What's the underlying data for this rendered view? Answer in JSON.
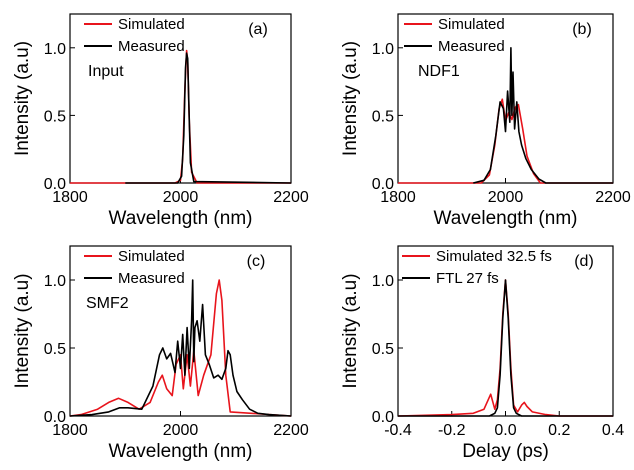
{
  "chart_data": [
    {
      "type": "line",
      "panel_label": "(a)",
      "annotation": "Input",
      "xlabel": "Wavelength (nm)",
      "ylabel": "Intensity (a.u)",
      "xlim": [
        1800,
        2200
      ],
      "ylim": [
        0,
        1.25
      ],
      "xticks": [
        "1800",
        "2000",
        "2200"
      ],
      "yticks": [
        "0.0",
        "0.5",
        "1.0"
      ],
      "legend_position": "top-left",
      "colors": {
        "Simulated": "#e8141c",
        "Measured": "#000000"
      },
      "series": [
        {
          "name": "Simulated",
          "x": [
            1800,
            1990,
            2000,
            2004,
            2008,
            2011,
            2013,
            2016,
            2020,
            2030,
            2200
          ],
          "y": [
            0,
            0,
            0.02,
            0.18,
            0.7,
            0.98,
            0.9,
            0.45,
            0.08,
            0,
            0
          ]
        },
        {
          "name": "Measured",
          "x": [
            1900,
            1995,
            2002,
            2006,
            2009,
            2011,
            2013,
            2015,
            2018,
            2024,
            2200
          ],
          "y": [
            0,
            0,
            0.05,
            0.35,
            0.85,
            0.96,
            0.92,
            0.6,
            0.15,
            0.01,
            0
          ]
        }
      ]
    },
    {
      "type": "line",
      "panel_label": "(b)",
      "annotation": "NDF1",
      "xlabel": "Wavelength (nm)",
      "ylabel": "Intensity (a.u)",
      "xlim": [
        1800,
        2200
      ],
      "ylim": [
        0,
        1.25
      ],
      "xticks": [
        "1800",
        "2000",
        "2200"
      ],
      "yticks": [
        "0.0",
        "0.5",
        "1.0"
      ],
      "legend_position": "top-left",
      "colors": {
        "Simulated": "#e8141c",
        "Measured": "#000000"
      },
      "series": [
        {
          "name": "Simulated",
          "x": [
            1800,
            1955,
            1970,
            1980,
            1988,
            1994,
            2000,
            2006,
            2012,
            2018,
            2024,
            2032,
            2040,
            2052,
            2065,
            2200
          ],
          "y": [
            0,
            0,
            0.06,
            0.28,
            0.55,
            0.62,
            0.46,
            0.52,
            0.47,
            0.56,
            0.58,
            0.4,
            0.2,
            0.07,
            0,
            0
          ]
        },
        {
          "name": "Measured",
          "x": [
            1940,
            1960,
            1972,
            1982,
            1990,
            1996,
            2000,
            2004,
            2008,
            2010,
            2012,
            2014,
            2017,
            2021,
            2025,
            2030,
            2038,
            2048,
            2062,
            2075,
            2200
          ],
          "y": [
            0,
            0.02,
            0.1,
            0.35,
            0.6,
            0.55,
            0.38,
            0.68,
            0.45,
            1.0,
            0.5,
            0.82,
            0.4,
            0.6,
            0.38,
            0.28,
            0.18,
            0.1,
            0.03,
            0,
            0
          ]
        }
      ]
    },
    {
      "type": "line",
      "panel_label": "(c)",
      "annotation": "SMF2",
      "xlabel": "Wavelength (nm)",
      "ylabel": "Intensity (a.u)",
      "xlim": [
        1800,
        2200
      ],
      "ylim": [
        0,
        1.25
      ],
      "xticks": [
        "1800",
        "2000",
        "2200"
      ],
      "yticks": [
        "0.0",
        "0.5",
        "1.0"
      ],
      "legend_position": "top-left",
      "colors": {
        "Simulated": "#e8141c",
        "Measured": "#000000"
      },
      "series": [
        {
          "name": "Simulated",
          "x": [
            1800,
            1820,
            1850,
            1870,
            1888,
            1905,
            1925,
            1945,
            1960,
            1967,
            1975,
            1985,
            1992,
            2000,
            2005,
            2012,
            2018,
            2024,
            2032,
            2042,
            2055,
            2065,
            2070,
            2075,
            2082,
            2090,
            2200
          ],
          "y": [
            0,
            0.01,
            0.05,
            0.1,
            0.13,
            0.1,
            0.05,
            0.1,
            0.25,
            0.3,
            0.2,
            0.15,
            0.38,
            0.45,
            0.2,
            0.45,
            0.22,
            0.48,
            0.15,
            0.3,
            0.45,
            0.9,
            1.0,
            0.85,
            0.3,
            0.03,
            0
          ]
        },
        {
          "name": "Measured",
          "x": [
            1800,
            1840,
            1870,
            1890,
            1905,
            1930,
            1950,
            1962,
            1968,
            1975,
            1982,
            1990,
            1995,
            2000,
            2004,
            2008,
            2012,
            2016,
            2020,
            2022,
            2024,
            2026,
            2030,
            2035,
            2040,
            2045,
            2052,
            2060,
            2068,
            2075,
            2082,
            2086,
            2090,
            2095,
            2102,
            2112,
            2125,
            2140,
            2160,
            2200
          ],
          "y": [
            0,
            0.01,
            0.03,
            0.06,
            0.06,
            0.05,
            0.22,
            0.45,
            0.5,
            0.42,
            0.46,
            0.32,
            0.55,
            0.35,
            0.6,
            0.3,
            0.65,
            0.35,
            0.7,
            1.0,
            0.4,
            0.65,
            0.7,
            0.55,
            0.82,
            0.45,
            0.38,
            0.28,
            0.3,
            0.27,
            0.35,
            0.48,
            0.45,
            0.3,
            0.18,
            0.12,
            0.05,
            0.02,
            0.01,
            0
          ]
        }
      ]
    },
    {
      "type": "line",
      "panel_label": "(d)",
      "annotation": "",
      "xlabel": "Delay (ps)",
      "ylabel": "Intensity (a.u)",
      "xlim": [
        -0.4,
        0.4
      ],
      "ylim": [
        0,
        1.25
      ],
      "xticks": [
        "-0.4",
        "-0.2",
        "0.0",
        "0.2",
        "0.4"
      ],
      "yticks": [
        "0.0",
        "0.5",
        "1.0"
      ],
      "legend_position": "top-left",
      "colors": {
        "Simulated 32.5 fs": "#e8141c",
        "FTL 27 fs": "#000000"
      },
      "series": [
        {
          "name": "Simulated 32.5 fs",
          "x": [
            -0.4,
            -0.2,
            -0.12,
            -0.08,
            -0.055,
            -0.04,
            -0.03,
            -0.02,
            -0.01,
            0.0,
            0.01,
            0.02,
            0.03,
            0.045,
            0.06,
            0.07,
            0.08,
            0.1,
            0.15,
            0.2,
            0.4
          ],
          "y": [
            0,
            0.01,
            0.02,
            0.05,
            0.16,
            0.05,
            0.12,
            0.35,
            0.75,
            1.0,
            0.75,
            0.35,
            0.08,
            0.03,
            0.08,
            0.1,
            0.07,
            0.03,
            0.01,
            0,
            0
          ]
        },
        {
          "name": "FTL 27 fs",
          "x": [
            -0.4,
            -0.06,
            -0.04,
            -0.03,
            -0.02,
            -0.01,
            0.0,
            0.01,
            0.02,
            0.03,
            0.04,
            0.06,
            0.4
          ],
          "y": [
            0,
            0,
            0.02,
            0.06,
            0.3,
            0.72,
            1.0,
            0.72,
            0.3,
            0.06,
            0.02,
            0,
            0
          ]
        }
      ]
    }
  ]
}
